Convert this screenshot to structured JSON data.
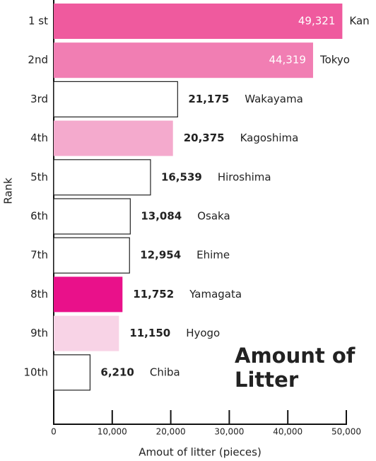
{
  "chart_data": {
    "type": "bar",
    "orientation": "horizontal",
    "categories": [
      "1 st",
      "2nd",
      "3rd",
      "4th",
      "5th",
      "6th",
      "7th",
      "8th",
      "9th",
      "10th"
    ],
    "labels": [
      "Kan",
      "Tokyo",
      "Wakayama",
      "Kagoshima",
      "Hiroshima",
      "Osaka",
      "Ehime",
      "Yamagata",
      "Hyogo",
      "Chiba"
    ],
    "values": [
      49321,
      44319,
      21175,
      20375,
      16539,
      13084,
      12954,
      11752,
      11150,
      6210
    ],
    "value_labels": [
      "49,321",
      "44,319",
      "21,175",
      "20,375",
      "16,539",
      "13,084",
      "12,954",
      "11,752",
      "11,150",
      "6,210"
    ],
    "colors": [
      "#ef5a9e",
      "#f17eb3",
      "#ffffff",
      "#f4aacd",
      "#ffffff",
      "#ffffff",
      "#ffffff",
      "#e9118a",
      "#f8d3e6",
      "#ffffff"
    ],
    "xlim": [
      0,
      50000
    ],
    "xticks": [
      0,
      {
        "value": 10000,
        "label": "10,000"
      },
      {
        "value": 20000,
        "label": "20,000"
      },
      {
        "value": 30000,
        "label": "30,000"
      },
      {
        "value": 40000,
        "label": "40,000"
      },
      {
        "value": 50000,
        "label": "50,000"
      }
    ],
    "xlabel": "Amout of litter (pieces)",
    "ylabel": "Rank",
    "annotation": "Amount of Litter"
  }
}
